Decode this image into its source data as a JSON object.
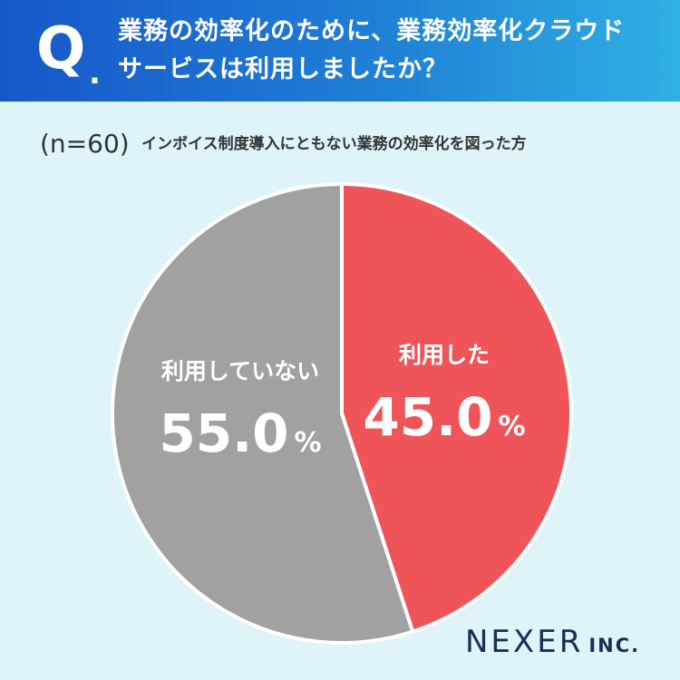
{
  "header": {
    "q_mark": "Q",
    "q_dot": ".",
    "question_line1": "業務の効率化のために、業務効率化クラウド",
    "question_line2": "サービスは利用しましたか？"
  },
  "note": {
    "n": "(n=60)",
    "description": "インボイス制度導入にともない業務の効率化を図った方"
  },
  "colors": {
    "used": "#ef5558",
    "not_used": "#a1a1a1",
    "header_start": "#1757c9",
    "header_end": "#2fb0e3",
    "background": "#dff4f9"
  },
  "chart_data": {
    "type": "pie",
    "slices": [
      {
        "label": "利用した",
        "value": 45.0,
        "display": "45.0",
        "unit": "%"
      },
      {
        "label": "利用していない",
        "value": 55.0,
        "display": "55.0",
        "unit": "%"
      }
    ]
  },
  "logo": {
    "name": "NEXER",
    "suffix": "INC."
  }
}
